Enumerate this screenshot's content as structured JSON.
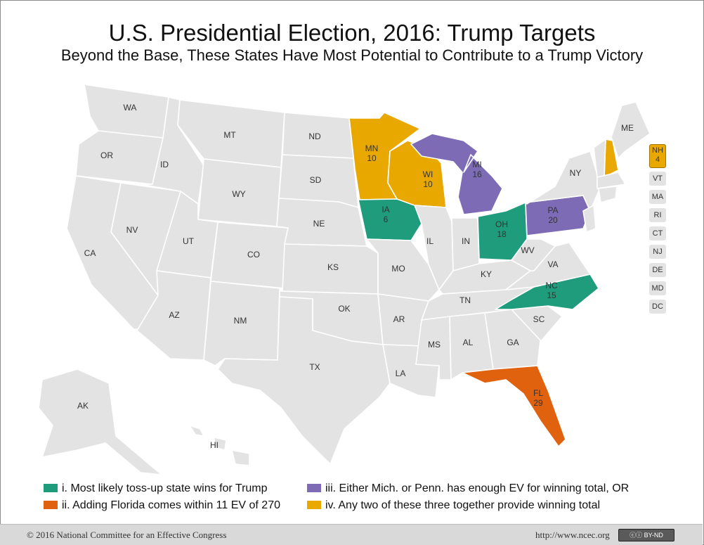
{
  "title": "U.S. Presidential Election, 2016: Trump Targets",
  "subtitle": "Beyond the Base, These States Have Most Potential to Contribute to a Trump Victory",
  "colors": {
    "base": "#e3e3e3",
    "tossup": "#1e9c7c",
    "florida": "#e0620e",
    "either": "#7d6bb5",
    "anytwo": "#e8a800"
  },
  "states": {
    "WA": {
      "label": "WA"
    },
    "OR": {
      "label": "OR"
    },
    "CA": {
      "label": "CA"
    },
    "NV": {
      "label": "NV"
    },
    "ID": {
      "label": "ID"
    },
    "MT": {
      "label": "MT"
    },
    "WY": {
      "label": "WY"
    },
    "UT": {
      "label": "UT"
    },
    "AZ": {
      "label": "AZ"
    },
    "CO": {
      "label": "CO"
    },
    "NM": {
      "label": "NM"
    },
    "ND": {
      "label": "ND"
    },
    "SD": {
      "label": "SD"
    },
    "NE": {
      "label": "NE"
    },
    "KS": {
      "label": "KS"
    },
    "OK": {
      "label": "OK"
    },
    "TX": {
      "label": "TX"
    },
    "MN": {
      "label": "MN",
      "ev": "10"
    },
    "IA": {
      "label": "IA",
      "ev": "6"
    },
    "MO": {
      "label": "MO"
    },
    "AR": {
      "label": "AR"
    },
    "LA": {
      "label": "LA"
    },
    "WI": {
      "label": "WI",
      "ev": "10"
    },
    "IL": {
      "label": "IL"
    },
    "MI": {
      "label": "MI",
      "ev": "16"
    },
    "IN": {
      "label": "IN"
    },
    "OH": {
      "label": "OH",
      "ev": "18"
    },
    "KY": {
      "label": "KY"
    },
    "TN": {
      "label": "TN"
    },
    "MS": {
      "label": "MS"
    },
    "AL": {
      "label": "AL"
    },
    "GA": {
      "label": "GA"
    },
    "FL": {
      "label": "FL",
      "ev": "29"
    },
    "SC": {
      "label": "SC"
    },
    "NC": {
      "label": "NC",
      "ev": "15"
    },
    "VA": {
      "label": "VA"
    },
    "WV": {
      "label": "WV"
    },
    "PA": {
      "label": "PA",
      "ev": "20"
    },
    "NY": {
      "label": "NY"
    },
    "ME": {
      "label": "ME"
    },
    "AK": {
      "label": "AK"
    },
    "HI": {
      "label": "HI"
    }
  },
  "small_states": [
    {
      "label": "NH",
      "ev": "4"
    },
    {
      "label": "VT"
    },
    {
      "label": "MA"
    },
    {
      "label": "RI"
    },
    {
      "label": "CT"
    },
    {
      "label": "NJ"
    },
    {
      "label": "DE"
    },
    {
      "label": "MD"
    },
    {
      "label": "DC"
    }
  ],
  "legend": {
    "tossup": "i. Most likely toss-up state wins for Trump",
    "florida": "ii. Adding Florida comes within 11 EV of 270",
    "either": "iii. Either Mich. or Penn. has enough EV for winning total, OR",
    "anytwo": "iv. Any two of these three together provide winning total"
  },
  "footer": {
    "copyright": "© 2016 National Committee for an Effective Congress",
    "url": "http://www.ncec.org",
    "license": "BY-ND"
  }
}
